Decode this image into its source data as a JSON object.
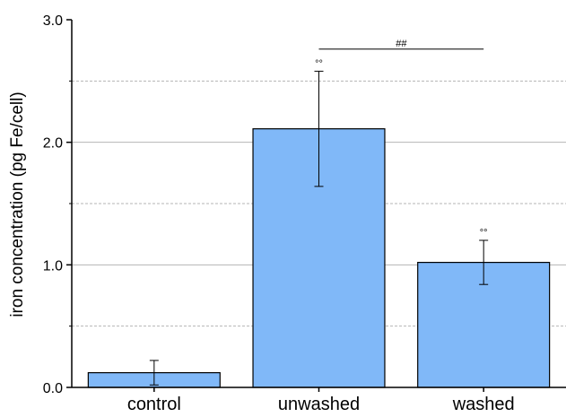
{
  "chart_data": {
    "type": "bar",
    "title": "",
    "xlabel": "",
    "ylabel": "iron concentration (pg Fe/cell)",
    "categories": [
      "control",
      "unwashed",
      "washed"
    ],
    "values": [
      0.12,
      2.11,
      1.02
    ],
    "error": [
      0.1,
      0.47,
      0.18
    ],
    "ylim": [
      0,
      3.0
    ],
    "yticks": [
      0.0,
      1.0,
      2.0,
      3.0
    ],
    "ytick_labels": [
      "0.0",
      "1.0",
      "2.0",
      "3.0"
    ],
    "major_grid": [
      1.0,
      2.0
    ],
    "minor_grid": [
      0.5,
      1.5,
      2.5
    ],
    "grid": true,
    "bar_color": "#80b8f8",
    "annotations": [
      {
        "category": "unwashed",
        "text": "°°"
      },
      {
        "category": "washed",
        "text": "°°"
      }
    ],
    "significance": {
      "from": "unwashed",
      "to": "washed",
      "y": 2.76,
      "text": "##"
    }
  }
}
